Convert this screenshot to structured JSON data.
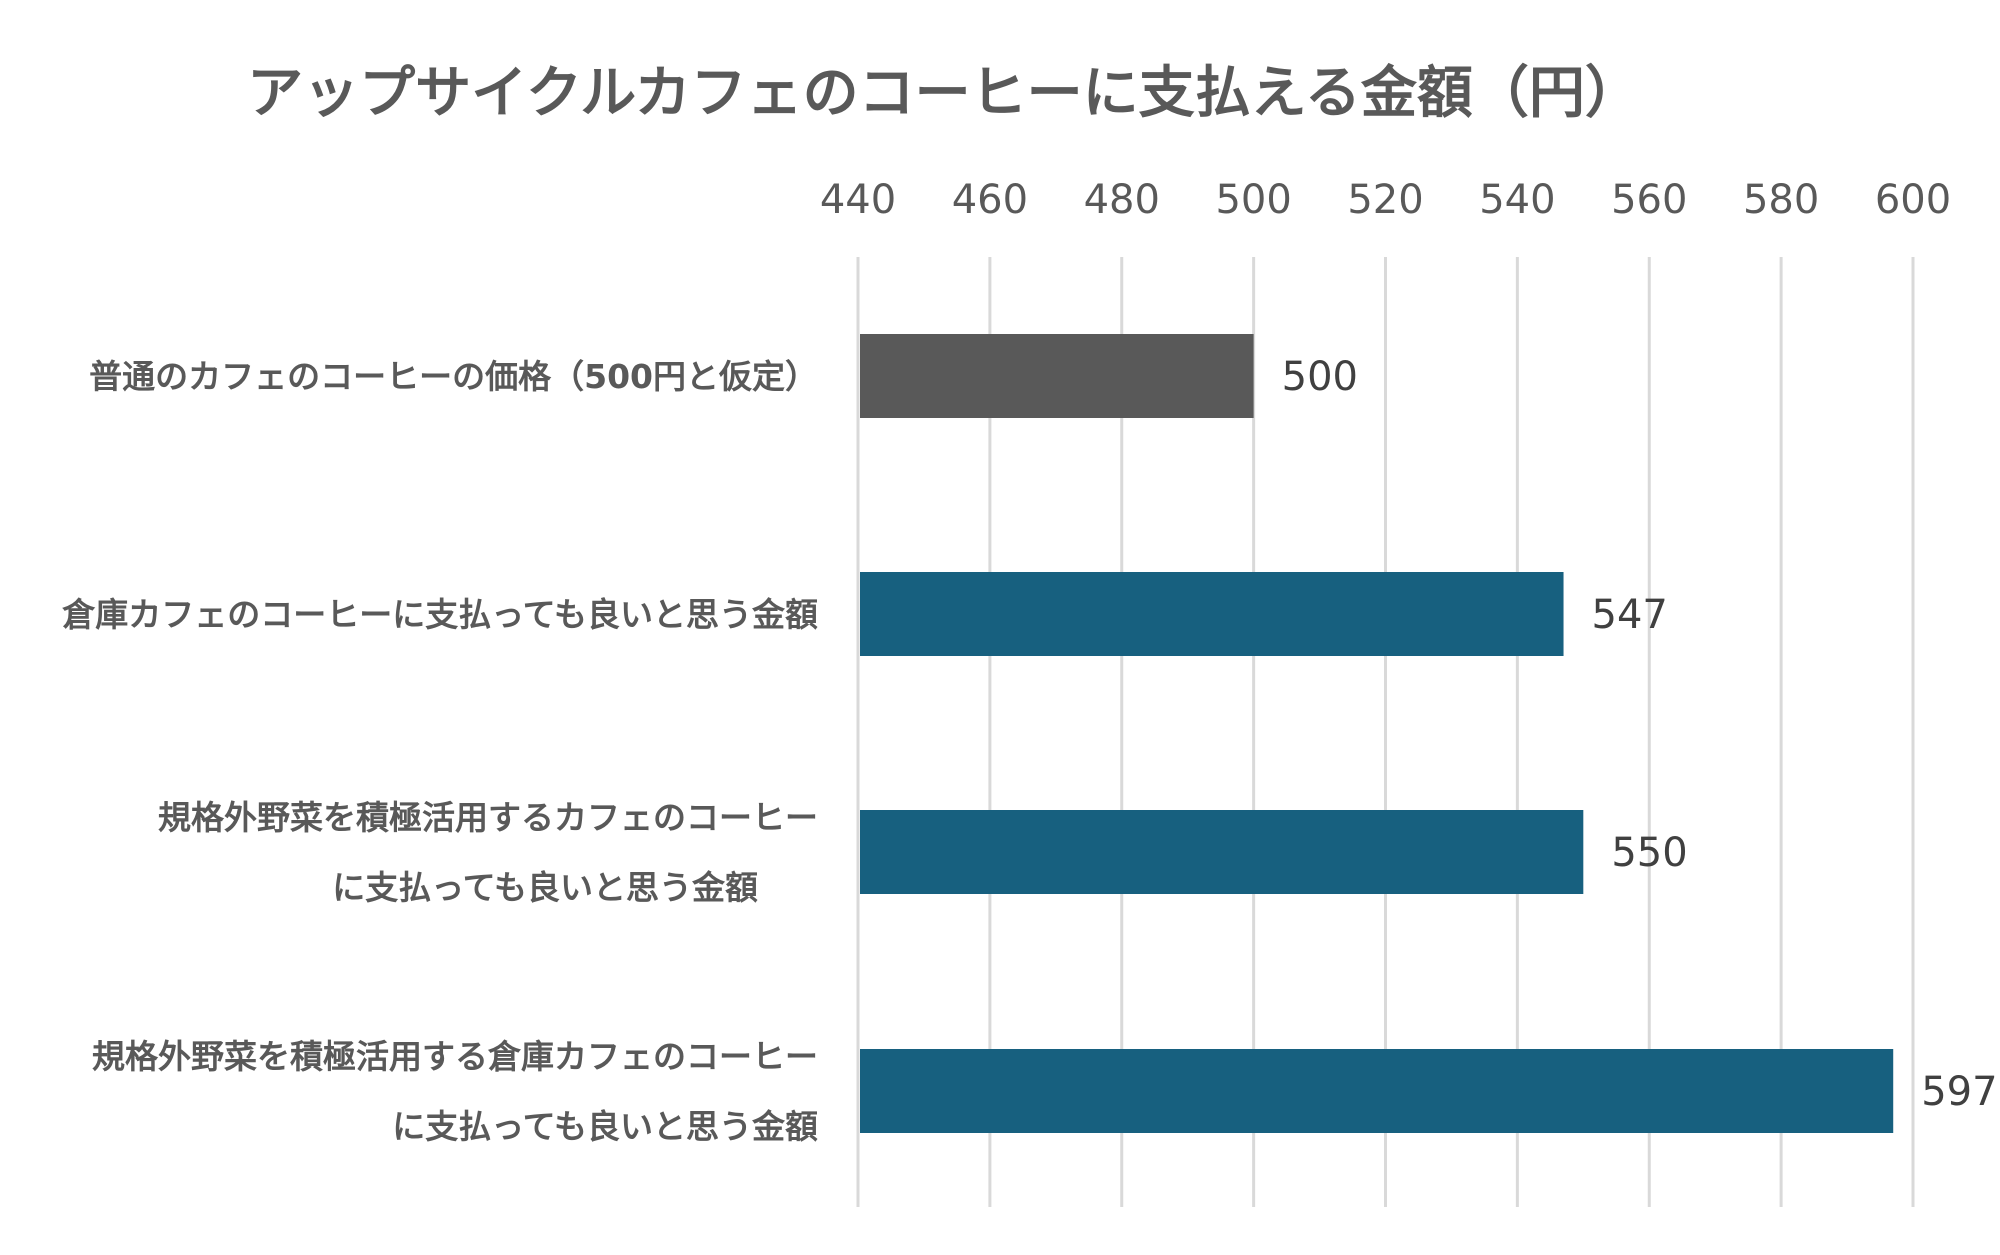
{
  "chart_data": {
    "type": "bar",
    "orientation": "horizontal",
    "title": "アップサイクルカフェのコーヒーに支払える金額（円）",
    "categories": [
      [
        "普通のカフェのコーヒーの価格（500円と仮定）"
      ],
      [
        "倉庫カフェのコーヒーに支払っても良いと思う金額"
      ],
      [
        "規格外野菜を積極活用するカフェのコーヒー",
        "に支払っても良いと思う金額"
      ],
      [
        "規格外野菜を積極活用する倉庫カフェのコーヒー",
        "に支払っても良いと思う金額"
      ]
    ],
    "values": [
      500,
      547,
      550,
      597
    ],
    "data_labels": [
      "500",
      "547",
      "550",
      "597"
    ],
    "bar_colors": [
      "#595959",
      "#17607f",
      "#17607f",
      "#17607f"
    ],
    "xlim": [
      440,
      600
    ],
    "xticks": [
      440,
      460,
      480,
      500,
      520,
      540,
      560,
      580,
      600
    ],
    "xtick_labels": [
      "440",
      "460",
      "480",
      "500",
      "520",
      "540",
      "560",
      "580",
      "600"
    ],
    "x_axis_position": "top",
    "grid": true,
    "legend": "none"
  }
}
